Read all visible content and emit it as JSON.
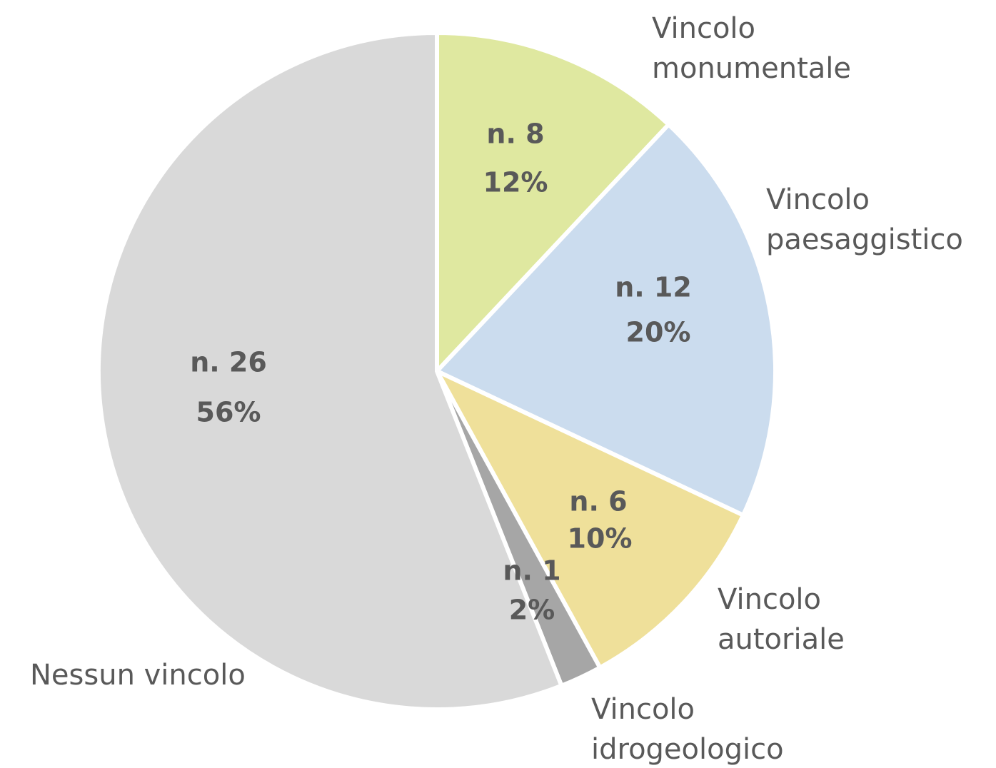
{
  "chart_data": {
    "type": "pie",
    "categories": [
      "Vincolo monumentale",
      "Vincolo paesaggistico",
      "Vincolo autoriale",
      "Vincolo idrogeologico",
      "Nessun vincolo"
    ],
    "values": [
      12,
      20,
      10,
      2,
      56
    ],
    "value_labels": [
      "12%",
      "20%",
      "10%",
      "2%",
      "56%"
    ],
    "count_labels": [
      "n. 8",
      "n. 12",
      "n. 6",
      "n. 1",
      "n. 26"
    ],
    "colors": [
      "#dfe8a0",
      "#cbdcee",
      "#efe09a",
      "#a6a6a6",
      "#d9d9d9"
    ]
  }
}
